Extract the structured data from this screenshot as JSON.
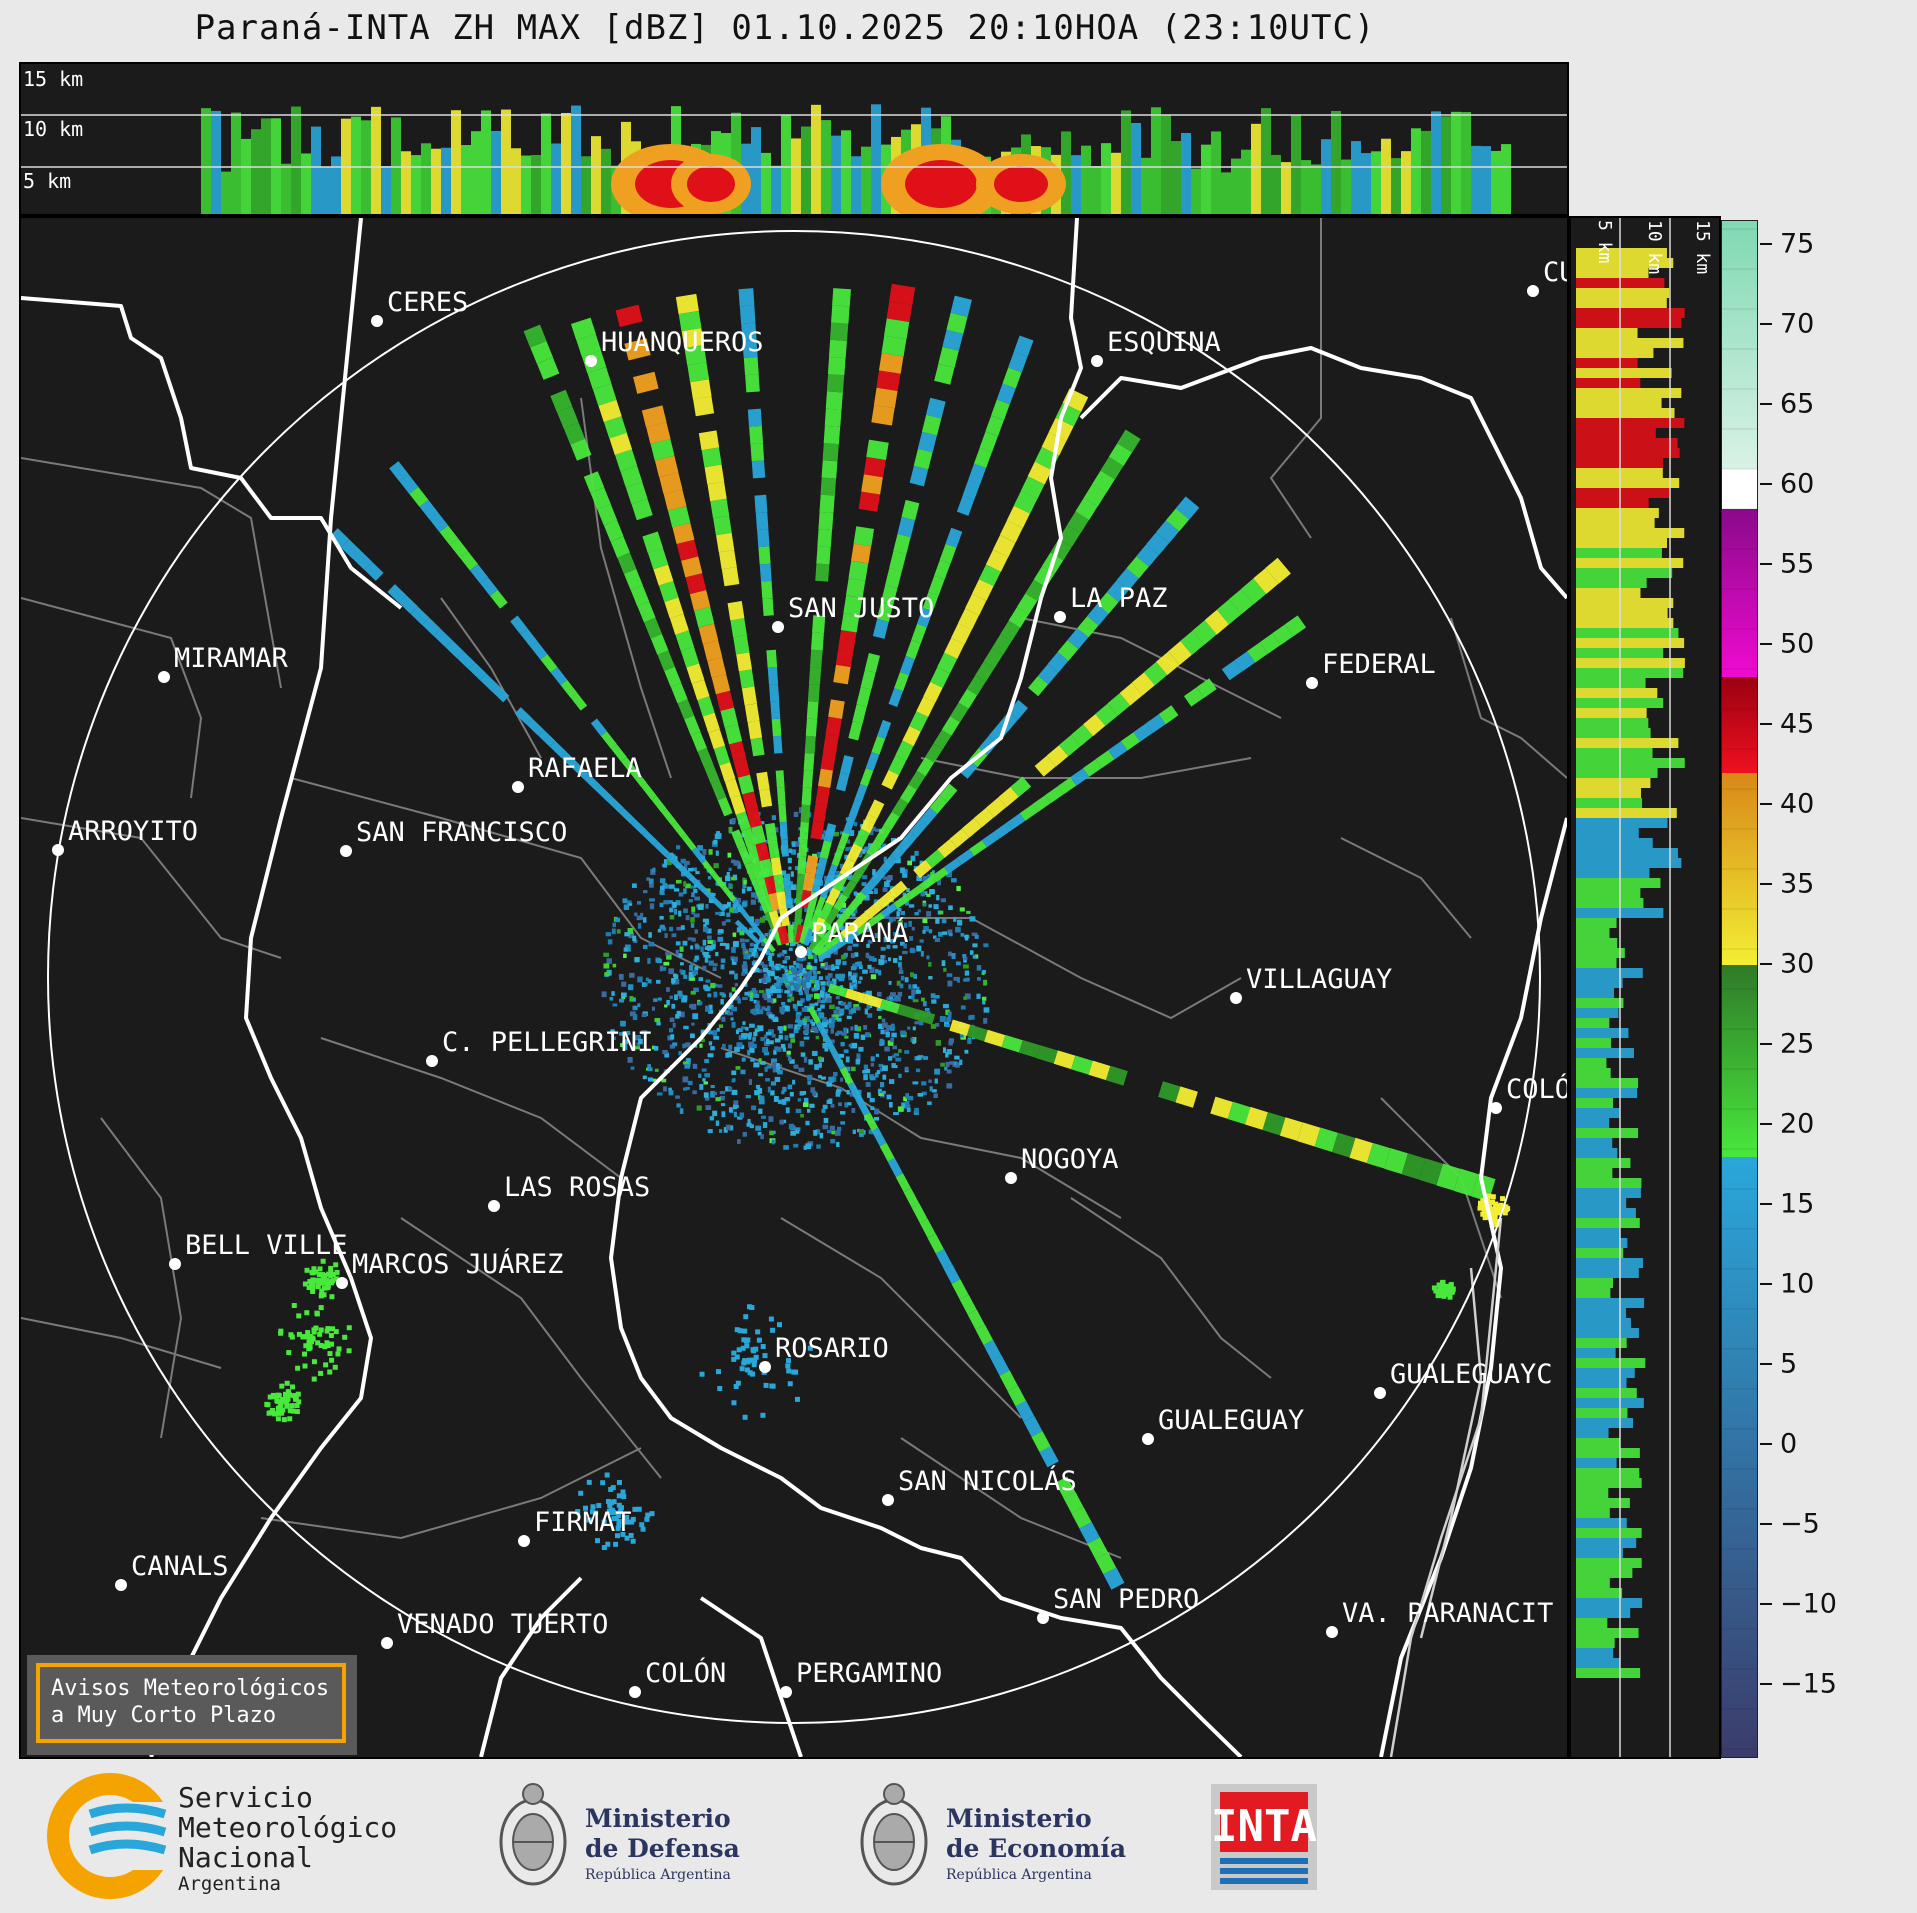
{
  "title": "Paraná-INTA ZH MAX [dBZ] 01.10.2025 20:10HOA (23:10UTC)",
  "top_panel": {
    "heights": [
      "15 km",
      "10 km",
      "5 km"
    ]
  },
  "right_panel": {
    "heights": [
      "5 km",
      "10 km",
      "15 km"
    ]
  },
  "colorbar": {
    "ticks": [
      "75",
      "70",
      "65",
      "60",
      "55",
      "50",
      "45",
      "40",
      "35",
      "30",
      "25",
      "20",
      "15",
      "10",
      "5",
      "0",
      "−5",
      "−10",
      "−15"
    ],
    "values": [
      75,
      70,
      65,
      60,
      55,
      50,
      45,
      40,
      35,
      30,
      25,
      20,
      15,
      10,
      5,
      0,
      -5,
      -10,
      -15
    ],
    "min": -19.5,
    "max": 76.5,
    "bands": [
      {
        "from": -19.5,
        "to": 18,
        "color_top": "#2aa7da",
        "color_bottom": "#3b3c6b"
      },
      {
        "from": 18,
        "to": 30,
        "color_top": "#2f7a28",
        "color_bottom": "#49e83d"
      },
      {
        "from": 30,
        "to": 42,
        "color_top": "#d88818",
        "color_bottom": "#f3ee33"
      },
      {
        "from": 42,
        "to": 48,
        "color_top": "#9a0010",
        "color_bottom": "#f01020"
      },
      {
        "from": 48,
        "to": 58.5,
        "color_top": "#8a0a8a",
        "color_bottom": "#f00ad0"
      },
      {
        "from": 58.5,
        "to": 61,
        "color_top": "#ffffff",
        "color_bottom": "#ffffff"
      },
      {
        "from": 61,
        "to": 76.5,
        "color_top": "#7fd9b2",
        "color_bottom": "#d9f2e6"
      }
    ]
  },
  "cities": [
    {
      "name": "CERES"
    },
    {
      "name": "HUANQUEROS"
    },
    {
      "name": "ESQUINA"
    },
    {
      "name": "CU"
    },
    {
      "name": "MIRAMAR"
    },
    {
      "name": "SAN JUSTO"
    },
    {
      "name": "LA PAZ"
    },
    {
      "name": "FEDERAL"
    },
    {
      "name": "RAFAELA"
    },
    {
      "name": "ARROYITO"
    },
    {
      "name": "SAN FRANCISCO"
    },
    {
      "name": "PARANÁ"
    },
    {
      "name": "VILLAGUAY"
    },
    {
      "name": "C. PELLEGRINI"
    },
    {
      "name": "COLÓ"
    },
    {
      "name": "NOGOYA"
    },
    {
      "name": "LAS ROSAS"
    },
    {
      "name": "BELL VILLE"
    },
    {
      "name": "MARCOS JUÁREZ"
    },
    {
      "name": "ROSARIO"
    },
    {
      "name": "GUALEGUAYC"
    },
    {
      "name": "GUALEGUAY"
    },
    {
      "name": "SAN NICOLÁS"
    },
    {
      "name": "FIRMAT"
    },
    {
      "name": "CANALS"
    },
    {
      "name": "SAN PEDRO"
    },
    {
      "name": "VENADO TUERTO"
    },
    {
      "name": "VA. PARANACIT"
    },
    {
      "name": "COLÓN"
    },
    {
      "name": "PERGAMINO"
    }
  ],
  "notice": {
    "line1": "Avisos Meteorológicos",
    "line2": "a Muy Corto Plazo"
  },
  "logos": {
    "smn": {
      "line1": "Servicio",
      "line2": "Meteorológico",
      "line3": "Nacional",
      "line4": "Argentina"
    },
    "defensa": {
      "line1": "Ministerio",
      "line2": "de Defensa",
      "line3": "República Argentina"
    },
    "economia": {
      "line1": "Ministerio",
      "line2": "de Economía",
      "line3": "República Argentina"
    },
    "inta": {
      "text": "INTA"
    }
  },
  "colors": {
    "background": "#e9e9e9",
    "map": "#1b1b1b",
    "accent": "#f5a300",
    "smn_blue": "#2aa7da"
  }
}
